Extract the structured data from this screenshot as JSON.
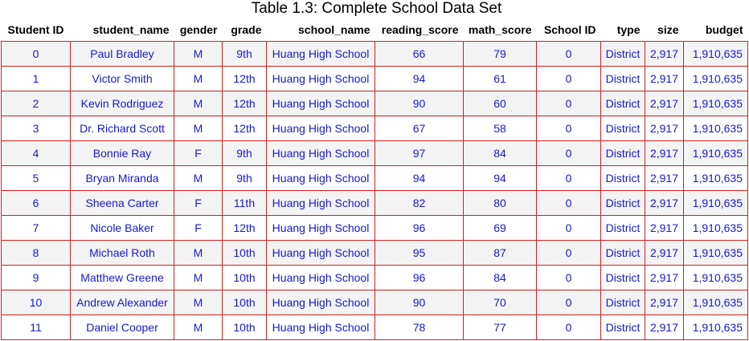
{
  "caption": "Table 1.3: Complete School Data Set",
  "columns": [
    "Student ID",
    "student_name",
    "gender",
    "grade",
    "school_name",
    "reading_score",
    "math_score",
    "School ID",
    "type",
    "size",
    "budget"
  ],
  "rows": [
    [
      "0",
      "Paul Bradley",
      "M",
      "9th",
      "Huang High School",
      "66",
      "79",
      "0",
      "District",
      "2,917",
      "1,910,635"
    ],
    [
      "1",
      "Victor Smith",
      "M",
      "12th",
      "Huang High School",
      "94",
      "61",
      "0",
      "District",
      "2,917",
      "1,910,635"
    ],
    [
      "2",
      "Kevin Rodriguez",
      "M",
      "12th",
      "Huang High School",
      "90",
      "60",
      "0",
      "District",
      "2,917",
      "1,910,635"
    ],
    [
      "3",
      "Dr. Richard Scott",
      "M",
      "12th",
      "Huang High School",
      "67",
      "58",
      "0",
      "District",
      "2,917",
      "1,910,635"
    ],
    [
      "4",
      "Bonnie Ray",
      "F",
      "9th",
      "Huang High School",
      "97",
      "84",
      "0",
      "District",
      "2,917",
      "1,910,635"
    ],
    [
      "5",
      "Bryan Miranda",
      "M",
      "9th",
      "Huang High School",
      "94",
      "94",
      "0",
      "District",
      "2,917",
      "1,910,635"
    ],
    [
      "6",
      "Sheena Carter",
      "F",
      "11th",
      "Huang High School",
      "82",
      "80",
      "0",
      "District",
      "2,917",
      "1,910,635"
    ],
    [
      "7",
      "Nicole Baker",
      "F",
      "12th",
      "Huang High School",
      "96",
      "69",
      "0",
      "District",
      "2,917",
      "1,910,635"
    ],
    [
      "8",
      "Michael Roth",
      "M",
      "10th",
      "Huang High School",
      "95",
      "87",
      "0",
      "District",
      "2,917",
      "1,910,635"
    ],
    [
      "9",
      "Matthew Greene",
      "M",
      "10th",
      "Huang High School",
      "96",
      "84",
      "0",
      "District",
      "2,917",
      "1,910,635"
    ],
    [
      "10",
      "Andrew Alexander",
      "M",
      "10th",
      "Huang High School",
      "90",
      "70",
      "0",
      "District",
      "2,917",
      "1,910,635"
    ],
    [
      "11",
      "Daniel Cooper",
      "M",
      "10th",
      "Huang High School",
      "78",
      "77",
      "0",
      "District",
      "2,917",
      "1,910,635"
    ]
  ],
  "colors": {
    "cell_text": "#1717d8",
    "cell_border": "#d21f1f",
    "stripe": "#f3f3f3"
  }
}
